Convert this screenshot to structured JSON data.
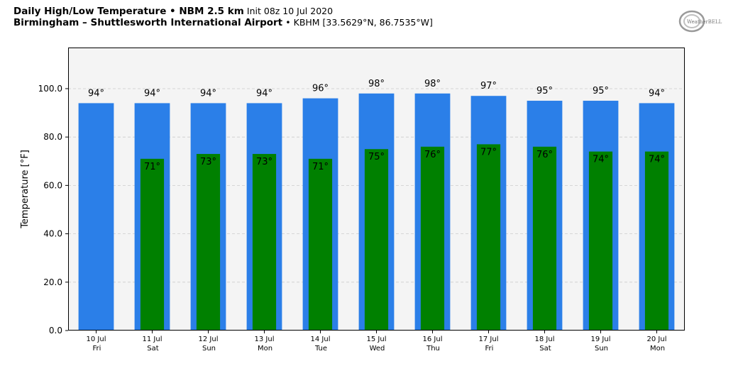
{
  "header": {
    "title_bold": "Daily High/Low Temperature • NBM 2.5 km",
    "title_normal": "Init 08z 10 Jul 2020",
    "subtitle_bold": "Birmingham – Shuttlesworth International Airport",
    "subtitle_normal": "• KBHM [33.5629°N, 86.7535°W]"
  },
  "logo": {
    "icon": "weatherbell-logo",
    "text": "WeatherBELL"
  },
  "colors": {
    "high_bar": "#2b7fe8",
    "low_bar": "#008000",
    "plot_bg": "#f4f4f4",
    "grid": "#cccccc"
  },
  "chart_data": {
    "type": "bar",
    "ylabel": "Temperature [°F]",
    "ylim": [
      0,
      117
    ],
    "yticks": [
      "0.0",
      "20.0",
      "40.0",
      "60.0",
      "80.0",
      "100.0"
    ],
    "ytick_values": [
      0,
      20,
      40,
      60,
      80,
      100
    ],
    "grid": true,
    "categories": [
      {
        "date": "10 Jul",
        "day": "Fri"
      },
      {
        "date": "11 Jul",
        "day": "Sat"
      },
      {
        "date": "12 Jul",
        "day": "Sun"
      },
      {
        "date": "13 Jul",
        "day": "Mon"
      },
      {
        "date": "14 Jul",
        "day": "Tue"
      },
      {
        "date": "15 Jul",
        "day": "Wed"
      },
      {
        "date": "16 Jul",
        "day": "Thu"
      },
      {
        "date": "17 Jul",
        "day": "Fri"
      },
      {
        "date": "18 Jul",
        "day": "Sat"
      },
      {
        "date": "19 Jul",
        "day": "Sun"
      },
      {
        "date": "20 Jul",
        "day": "Mon"
      }
    ],
    "series": [
      {
        "values": [
          94,
          94,
          94,
          94,
          96,
          98,
          98,
          97,
          95,
          95,
          94
        ],
        "labels": [
          "94°",
          "94°",
          "94°",
          "94°",
          "96°",
          "98°",
          "98°",
          "97°",
          "95°",
          "95°",
          "94°"
        ]
      },
      {
        "values": [
          null,
          71,
          73,
          73,
          71,
          75,
          76,
          77,
          76,
          74,
          74
        ],
        "labels": [
          null,
          "71°",
          "73°",
          "73°",
          "71°",
          "75°",
          "76°",
          "77°",
          "76°",
          "74°",
          "74°"
        ]
      }
    ]
  }
}
